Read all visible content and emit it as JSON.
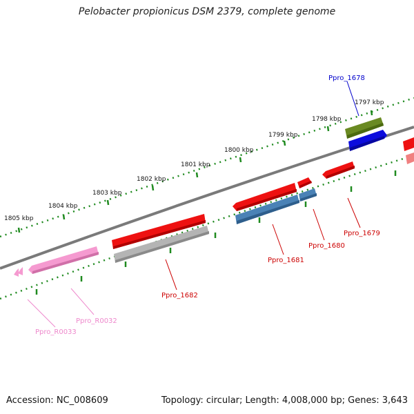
{
  "title": "Pelobacter propionicus DSM 2379, complete genome",
  "footer": {
    "accession": "Accession: NC_008609",
    "topology": "Topology: circular; Length: 4,008,000 bp; Genes: 3,643"
  },
  "colors": {
    "backbone": "#7a7a7a",
    "tick": "#1f8a1f",
    "cds": "#ee1111",
    "cds_alt": "#4a82b6",
    "cds_gray": "#b4b4b4",
    "cds_olive": "#6a8a22",
    "cds_blue": "#0c0cdd",
    "rna": "#f59ad0",
    "label_red": "#cc0000",
    "label_blue": "#0000cc",
    "label_pink": "#ee88cc"
  },
  "ruler": {
    "unit": "kbp",
    "ticks": [
      "1805 kbp",
      "1804 kbp",
      "1803 kbp",
      "1802 kbp",
      "1801 kbp",
      "1800 kbp",
      "1799 kbp",
      "1798 kbp",
      "1797 kbp"
    ]
  },
  "genes": [
    {
      "label": "Ppro_1678",
      "color_key": "label_blue"
    },
    {
      "label": "Ppro_1679",
      "color_key": "label_red"
    },
    {
      "label": "Ppro_1680",
      "color_key": "label_red"
    },
    {
      "label": "Ppro_1681",
      "color_key": "label_red"
    },
    {
      "label": "Ppro_1682",
      "color_key": "label_red"
    },
    {
      "label": "Ppro_R0032",
      "color_key": "label_pink"
    },
    {
      "label": "Ppro_R0033",
      "color_key": "label_pink"
    }
  ]
}
